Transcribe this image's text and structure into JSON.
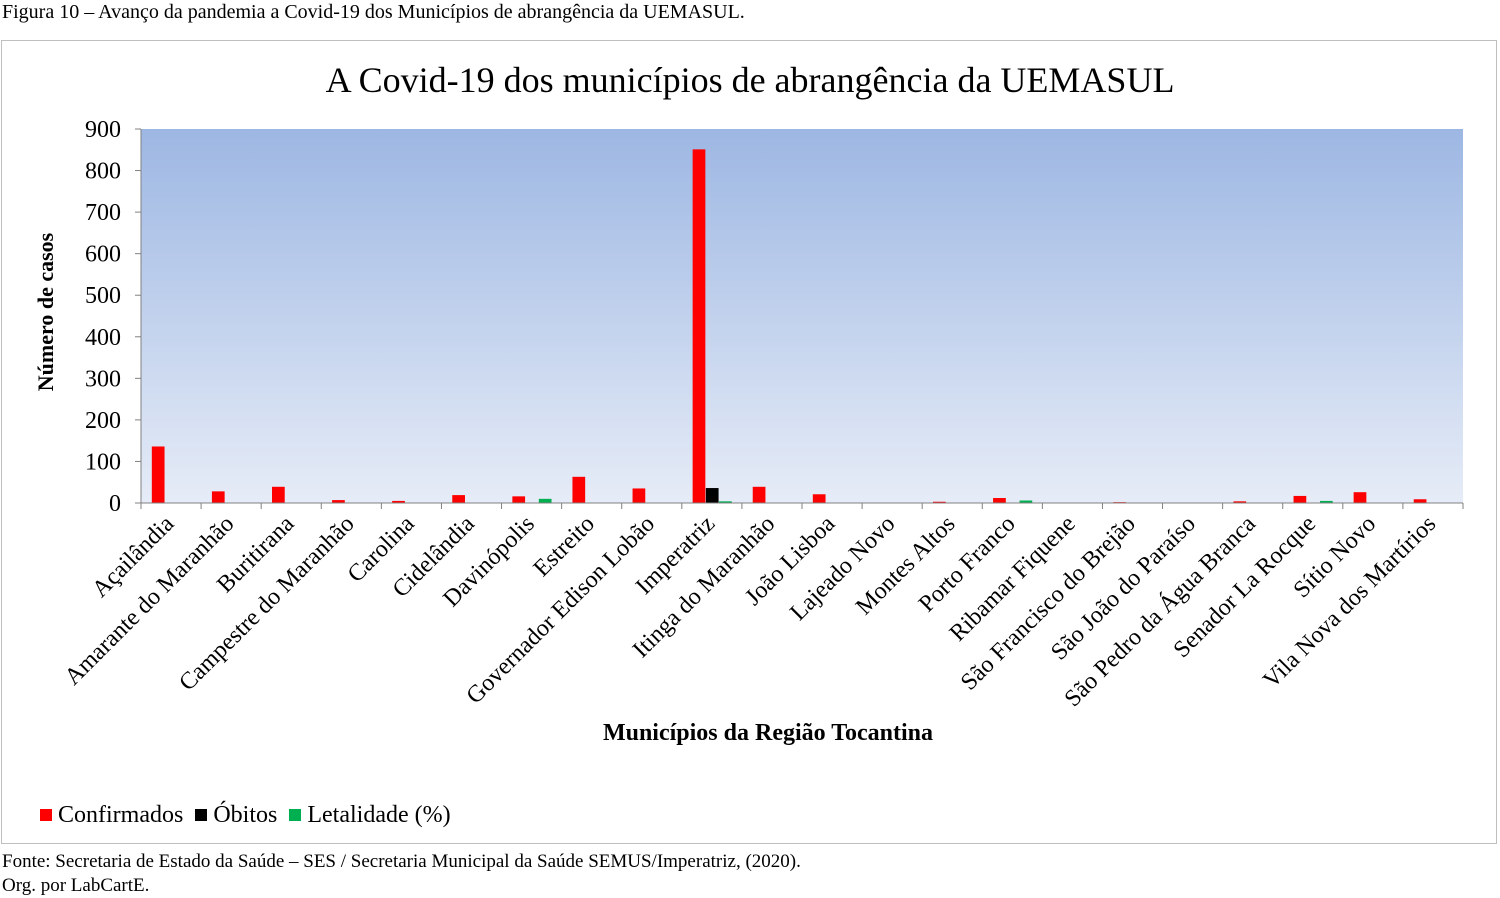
{
  "caption": "Figura 10 – Avanço da pandemia a Covid-19 dos Municípios de abrangência da UEMASUL.",
  "source": "Fonte: Secretaria de Estado da Saúde – SES / Secretaria Municipal da Saúde SEMUS/Imperatriz, (2020).",
  "org": "Org. por LabCartE.",
  "colors": {
    "confirmados": "#ff0000",
    "obitos": "#000000",
    "letalidade": "#00b050",
    "plot_top": "#9db7e3",
    "plot_bottom": "#e6ecf7"
  },
  "chart_data": {
    "type": "bar",
    "title": "A Covid-19 dos municípios de abrangência da UEMASUL",
    "xlabel": "Municípios da Região Tocantina",
    "ylabel": "Número de casos",
    "ylim": [
      0,
      900
    ],
    "yticks": [
      "0",
      "100",
      "200",
      "300",
      "400",
      "500",
      "600",
      "700",
      "800",
      "900"
    ],
    "grid": false,
    "legend_position": "bottom-left",
    "categories": [
      "Açailândia",
      "Amarante do Maranhão",
      "Buritirana",
      "Campestre do Maranhão",
      "Carolina",
      "Cidelândia",
      "Davinópolis",
      "Estreito",
      "Governador Edison Lobão",
      "Imperatriz",
      "Itinga do Maranhão",
      "João Lisboa",
      "Lajeado Novo",
      "Montes Altos",
      "Porto Franco",
      "Ribamar Fiquene",
      "São Francisco do Brejão",
      "São João do Paraíso",
      "São Pedro da Água Branca",
      "Senador La Rocque",
      "Sítio Novo",
      "Vila Nova dos Martírios"
    ],
    "series": [
      {
        "name": "Confirmados",
        "color": "#ff0000",
        "values": [
          136,
          28,
          39,
          7,
          5,
          19,
          16,
          63,
          35,
          851,
          39,
          21,
          0,
          3,
          12,
          0,
          2,
          0,
          4,
          17,
          26,
          9
        ]
      },
      {
        "name": "Óbitos",
        "color": "#000000",
        "values": [
          0,
          0,
          0,
          0,
          0,
          0,
          0,
          0,
          0,
          36,
          0,
          0,
          0,
          0,
          0,
          0,
          0,
          0,
          0,
          0,
          0,
          0
        ]
      },
      {
        "name": "Letalidade (%)",
        "color": "#00b050",
        "values": [
          0,
          0,
          0,
          0,
          0,
          0,
          10,
          0,
          0,
          4,
          0,
          0,
          0,
          0,
          6,
          0,
          0,
          0,
          0,
          5,
          0,
          0
        ]
      }
    ]
  }
}
